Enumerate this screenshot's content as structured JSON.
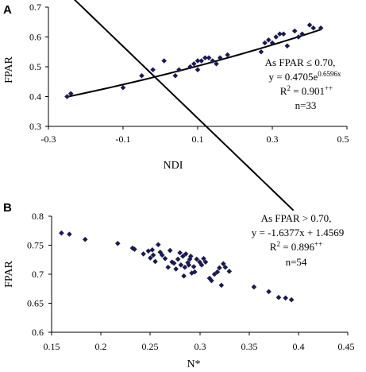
{
  "chart_data": [
    {
      "type": "scatter",
      "panel_label": "A",
      "xlabel": "NDI",
      "ylabel": "FPAR",
      "xlim": [
        -0.3,
        0.5
      ],
      "ylim": [
        0.3,
        0.7
      ],
      "x_ticks": [
        "-0.3",
        "-0.1",
        "0.1",
        "0.3",
        "0.5"
      ],
      "y_ticks": [
        "0.3",
        "0.4",
        "0.5",
        "0.6",
        "0.7"
      ],
      "grid": false,
      "annotation": {
        "line1": "As FPAR ≤ 0.70,",
        "line2_prefix": "y = 0.4705e",
        "line2_sup": "0.6596x",
        "line3_prefix": "R",
        "line3_sup1": "2",
        "line3_mid": " = 0.901",
        "line3_sup2": "++",
        "line4": "n=33"
      },
      "fit": {
        "kind": "exponential",
        "a": 0.4705,
        "b": 0.6596,
        "x_range": [
          -0.25,
          0.43
        ]
      },
      "points": [
        [
          -0.25,
          0.4
        ],
        [
          -0.24,
          0.41
        ],
        [
          -0.1,
          0.43
        ],
        [
          -0.05,
          0.47
        ],
        [
          -0.02,
          0.49
        ],
        [
          0.01,
          0.52
        ],
        [
          0.04,
          0.47
        ],
        [
          0.05,
          0.49
        ],
        [
          0.08,
          0.5
        ],
        [
          0.09,
          0.51
        ],
        [
          0.1,
          0.49
        ],
        [
          0.1,
          0.52
        ],
        [
          0.11,
          0.52
        ],
        [
          0.12,
          0.53
        ],
        [
          0.13,
          0.53
        ],
        [
          0.14,
          0.52
        ],
        [
          0.15,
          0.51
        ],
        [
          0.16,
          0.53
        ],
        [
          0.18,
          0.54
        ],
        [
          0.27,
          0.55
        ],
        [
          0.28,
          0.58
        ],
        [
          0.29,
          0.59
        ],
        [
          0.3,
          0.58
        ],
        [
          0.31,
          0.6
        ],
        [
          0.32,
          0.61
        ],
        [
          0.33,
          0.61
        ],
        [
          0.34,
          0.57
        ],
        [
          0.36,
          0.62
        ],
        [
          0.37,
          0.6
        ],
        [
          0.38,
          0.61
        ],
        [
          0.4,
          0.64
        ],
        [
          0.41,
          0.63
        ],
        [
          0.43,
          0.63
        ]
      ]
    },
    {
      "type": "scatter",
      "panel_label": "B",
      "xlabel": "N*",
      "ylabel": "FPAR",
      "xlim": [
        0.15,
        0.45
      ],
      "ylim": [
        0.6,
        0.8
      ],
      "x_ticks": [
        "0.15",
        "0.2",
        "0.25",
        "0.3",
        "0.35",
        "0.4",
        "0.45"
      ],
      "y_ticks": [
        "0.6",
        "0.65",
        "0.7",
        "0.75",
        "0.8"
      ],
      "grid": false,
      "annotation": {
        "line1": "As FPAR > 0.70,",
        "line2_prefix": "y = -1.6377x + 1.4569",
        "line2_sup": "",
        "line3_prefix": "R",
        "line3_sup1": "2",
        "line3_mid": " = 0.896",
        "line3_sup2": "++",
        "line4": "n=54"
      },
      "fit": {
        "kind": "linear",
        "slope": -1.6377,
        "intercept": 1.4569,
        "x_range": [
          0.16,
          0.395
        ]
      },
      "points": [
        [
          0.16,
          0.771
        ],
        [
          0.168,
          0.769
        ],
        [
          0.184,
          0.76
        ],
        [
          0.217,
          0.753
        ],
        [
          0.232,
          0.745
        ],
        [
          0.234,
          0.743
        ],
        [
          0.243,
          0.735
        ],
        [
          0.248,
          0.74
        ],
        [
          0.25,
          0.728
        ],
        [
          0.252,
          0.742
        ],
        [
          0.253,
          0.733
        ],
        [
          0.255,
          0.722
        ],
        [
          0.258,
          0.751
        ],
        [
          0.26,
          0.738
        ],
        [
          0.262,
          0.733
        ],
        [
          0.265,
          0.727
        ],
        [
          0.268,
          0.712
        ],
        [
          0.27,
          0.741
        ],
        [
          0.272,
          0.721
        ],
        [
          0.274,
          0.719
        ],
        [
          0.276,
          0.709
        ],
        [
          0.278,
          0.726
        ],
        [
          0.28,
          0.737
        ],
        [
          0.281,
          0.716
        ],
        [
          0.283,
          0.731
        ],
        [
          0.284,
          0.697
        ],
        [
          0.285,
          0.712
        ],
        [
          0.286,
          0.735
        ],
        [
          0.288,
          0.72
        ],
        [
          0.289,
          0.716
        ],
        [
          0.29,
          0.726
        ],
        [
          0.291,
          0.731
        ],
        [
          0.292,
          0.702
        ],
        [
          0.294,
          0.713
        ],
        [
          0.295,
          0.704
        ],
        [
          0.297,
          0.726
        ],
        [
          0.3,
          0.721
        ],
        [
          0.302,
          0.716
        ],
        [
          0.304,
          0.727
        ],
        [
          0.306,
          0.721
        ],
        [
          0.31,
          0.693
        ],
        [
          0.312,
          0.689
        ],
        [
          0.315,
          0.7
        ],
        [
          0.318,
          0.704
        ],
        [
          0.32,
          0.711
        ],
        [
          0.322,
          0.681
        ],
        [
          0.324,
          0.718
        ],
        [
          0.326,
          0.712
        ],
        [
          0.33,
          0.705
        ],
        [
          0.355,
          0.678
        ],
        [
          0.37,
          0.67
        ],
        [
          0.38,
          0.66
        ],
        [
          0.387,
          0.659
        ],
        [
          0.393,
          0.656
        ]
      ]
    }
  ]
}
